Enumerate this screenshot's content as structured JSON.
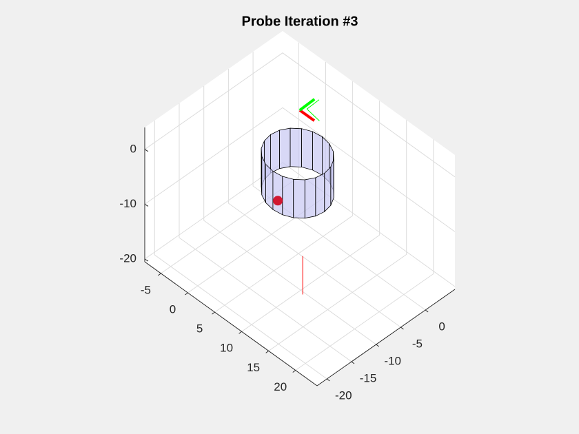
{
  "chart_data": {
    "type": "scatter3d",
    "title": "Probe Iteration #3",
    "xlim": [
      -8,
      24
    ],
    "xticks": [
      -5,
      0,
      5,
      10,
      15,
      20
    ],
    "ylim": [
      -22,
      6
    ],
    "yticks": [
      -20,
      -15,
      -10,
      -5,
      0
    ],
    "zlim": [
      -20.5,
      4
    ],
    "zticks": [
      -20,
      -10,
      0
    ],
    "grid": true,
    "cylinder": {
      "center": [
        3,
        -3
      ],
      "radius": 5,
      "z_range": [
        -12,
        -5
      ],
      "color": "#c8c8f2"
    },
    "points": [
      {
        "xyz": [
          3,
          -7,
          -11
        ],
        "color": "#d0021b"
      }
    ],
    "segments": [
      {
        "from": [
          11.1,
          -10.8,
          -13
        ],
        "to": [
          11.1,
          -10.8,
          -20
        ],
        "color": "#ff0000",
        "width": 1
      },
      {
        "from": [
          2.5,
          -2,
          2
        ],
        "to": [
          5.2,
          -2,
          2
        ],
        "color": "#ff0000",
        "width": 4
      },
      {
        "from": [
          2.5,
          -2,
          2
        ],
        "to": [
          2.4,
          1.1,
          2
        ],
        "color": "#00ff00",
        "width": 4
      },
      {
        "from": [
          3,
          -1.1,
          2
        ],
        "to": [
          2.9,
          1.5,
          2
        ],
        "color": "#00ff00",
        "width": 1
      },
      {
        "from": [
          3,
          -1.1,
          2
        ],
        "to": [
          5.7,
          -1.5,
          2
        ],
        "color": "#00ff00",
        "width": 1
      }
    ]
  }
}
